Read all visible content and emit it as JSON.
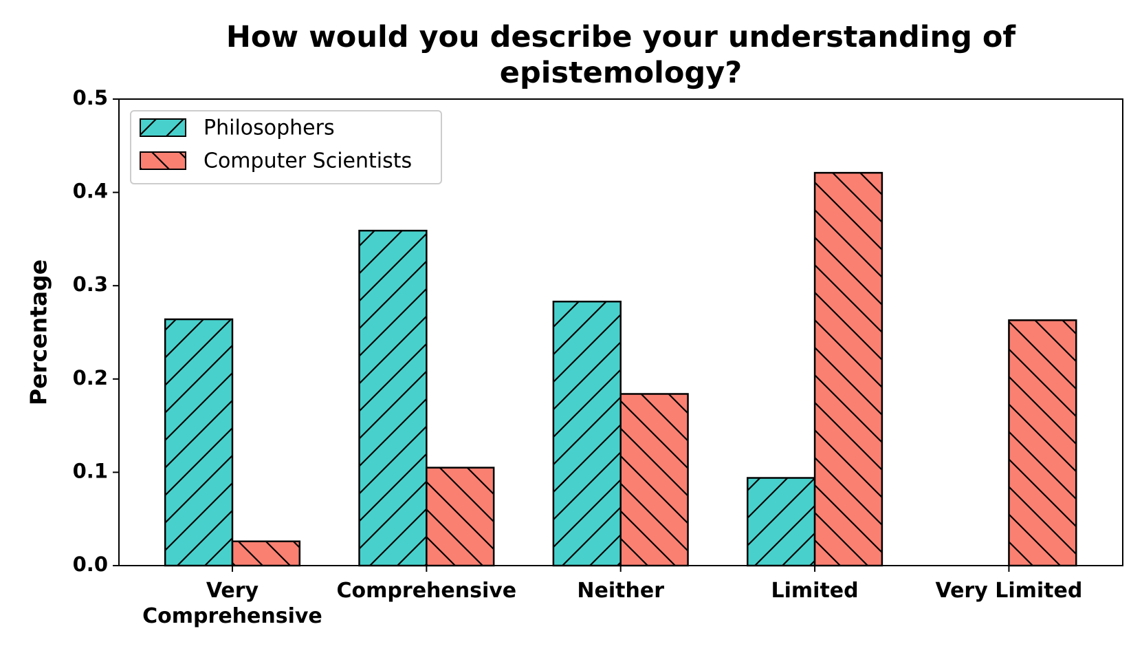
{
  "chart_data": {
    "type": "bar",
    "title": "How would you describe your understanding of epistemology?",
    "ylabel": "Percentage",
    "categories": [
      "Very Comprehensive",
      "Comprehensive",
      "Neither",
      "Limited",
      "Very Limited"
    ],
    "series": [
      {
        "name": "Philosophers",
        "color": "#48d1cc",
        "hatch": "/",
        "values": [
          0.264,
          0.359,
          0.283,
          0.094,
          0
        ]
      },
      {
        "name": "Computer Scientists",
        "color": "#fa8072",
        "hatch": "\\",
        "values": [
          0.026,
          0.105,
          0.184,
          0.421,
          0.263
        ]
      }
    ],
    "ylim": [
      0,
      0.5
    ],
    "yticks": [
      {
        "value": 0,
        "label": "0.0"
      },
      0.1,
      0.2,
      0.3,
      0.4,
      0.5
    ],
    "legend": "upper left"
  }
}
